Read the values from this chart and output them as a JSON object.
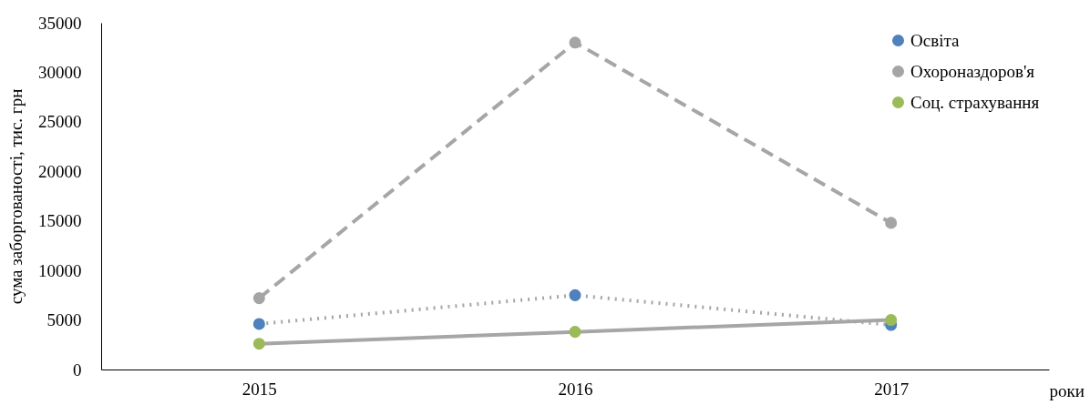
{
  "chart_data": {
    "type": "line",
    "xlabel": "роки",
    "ylabel": "сума заборгованості, тис. грн",
    "categories": [
      "2015",
      "2016",
      "2017"
    ],
    "series": [
      {
        "name": "Освіта",
        "color": "#4f81bd",
        "line_style": "dotted",
        "values": [
          4600,
          7500,
          4500
        ]
      },
      {
        "name": "Охороназдоров'я",
        "color": "#a5a5a5",
        "line_style": "dashed",
        "values": [
          7200,
          33000,
          14800
        ]
      },
      {
        "name": "Соц. страхування",
        "color": "#9bbb59",
        "line_style": "solid",
        "values": [
          2600,
          3800,
          5000
        ]
      }
    ],
    "ylim": [
      0,
      35000
    ],
    "yticks": [
      0,
      5000,
      10000,
      15000,
      20000,
      25000,
      30000,
      35000
    ],
    "grid": false,
    "legend": "top right",
    "marker": "circle"
  }
}
